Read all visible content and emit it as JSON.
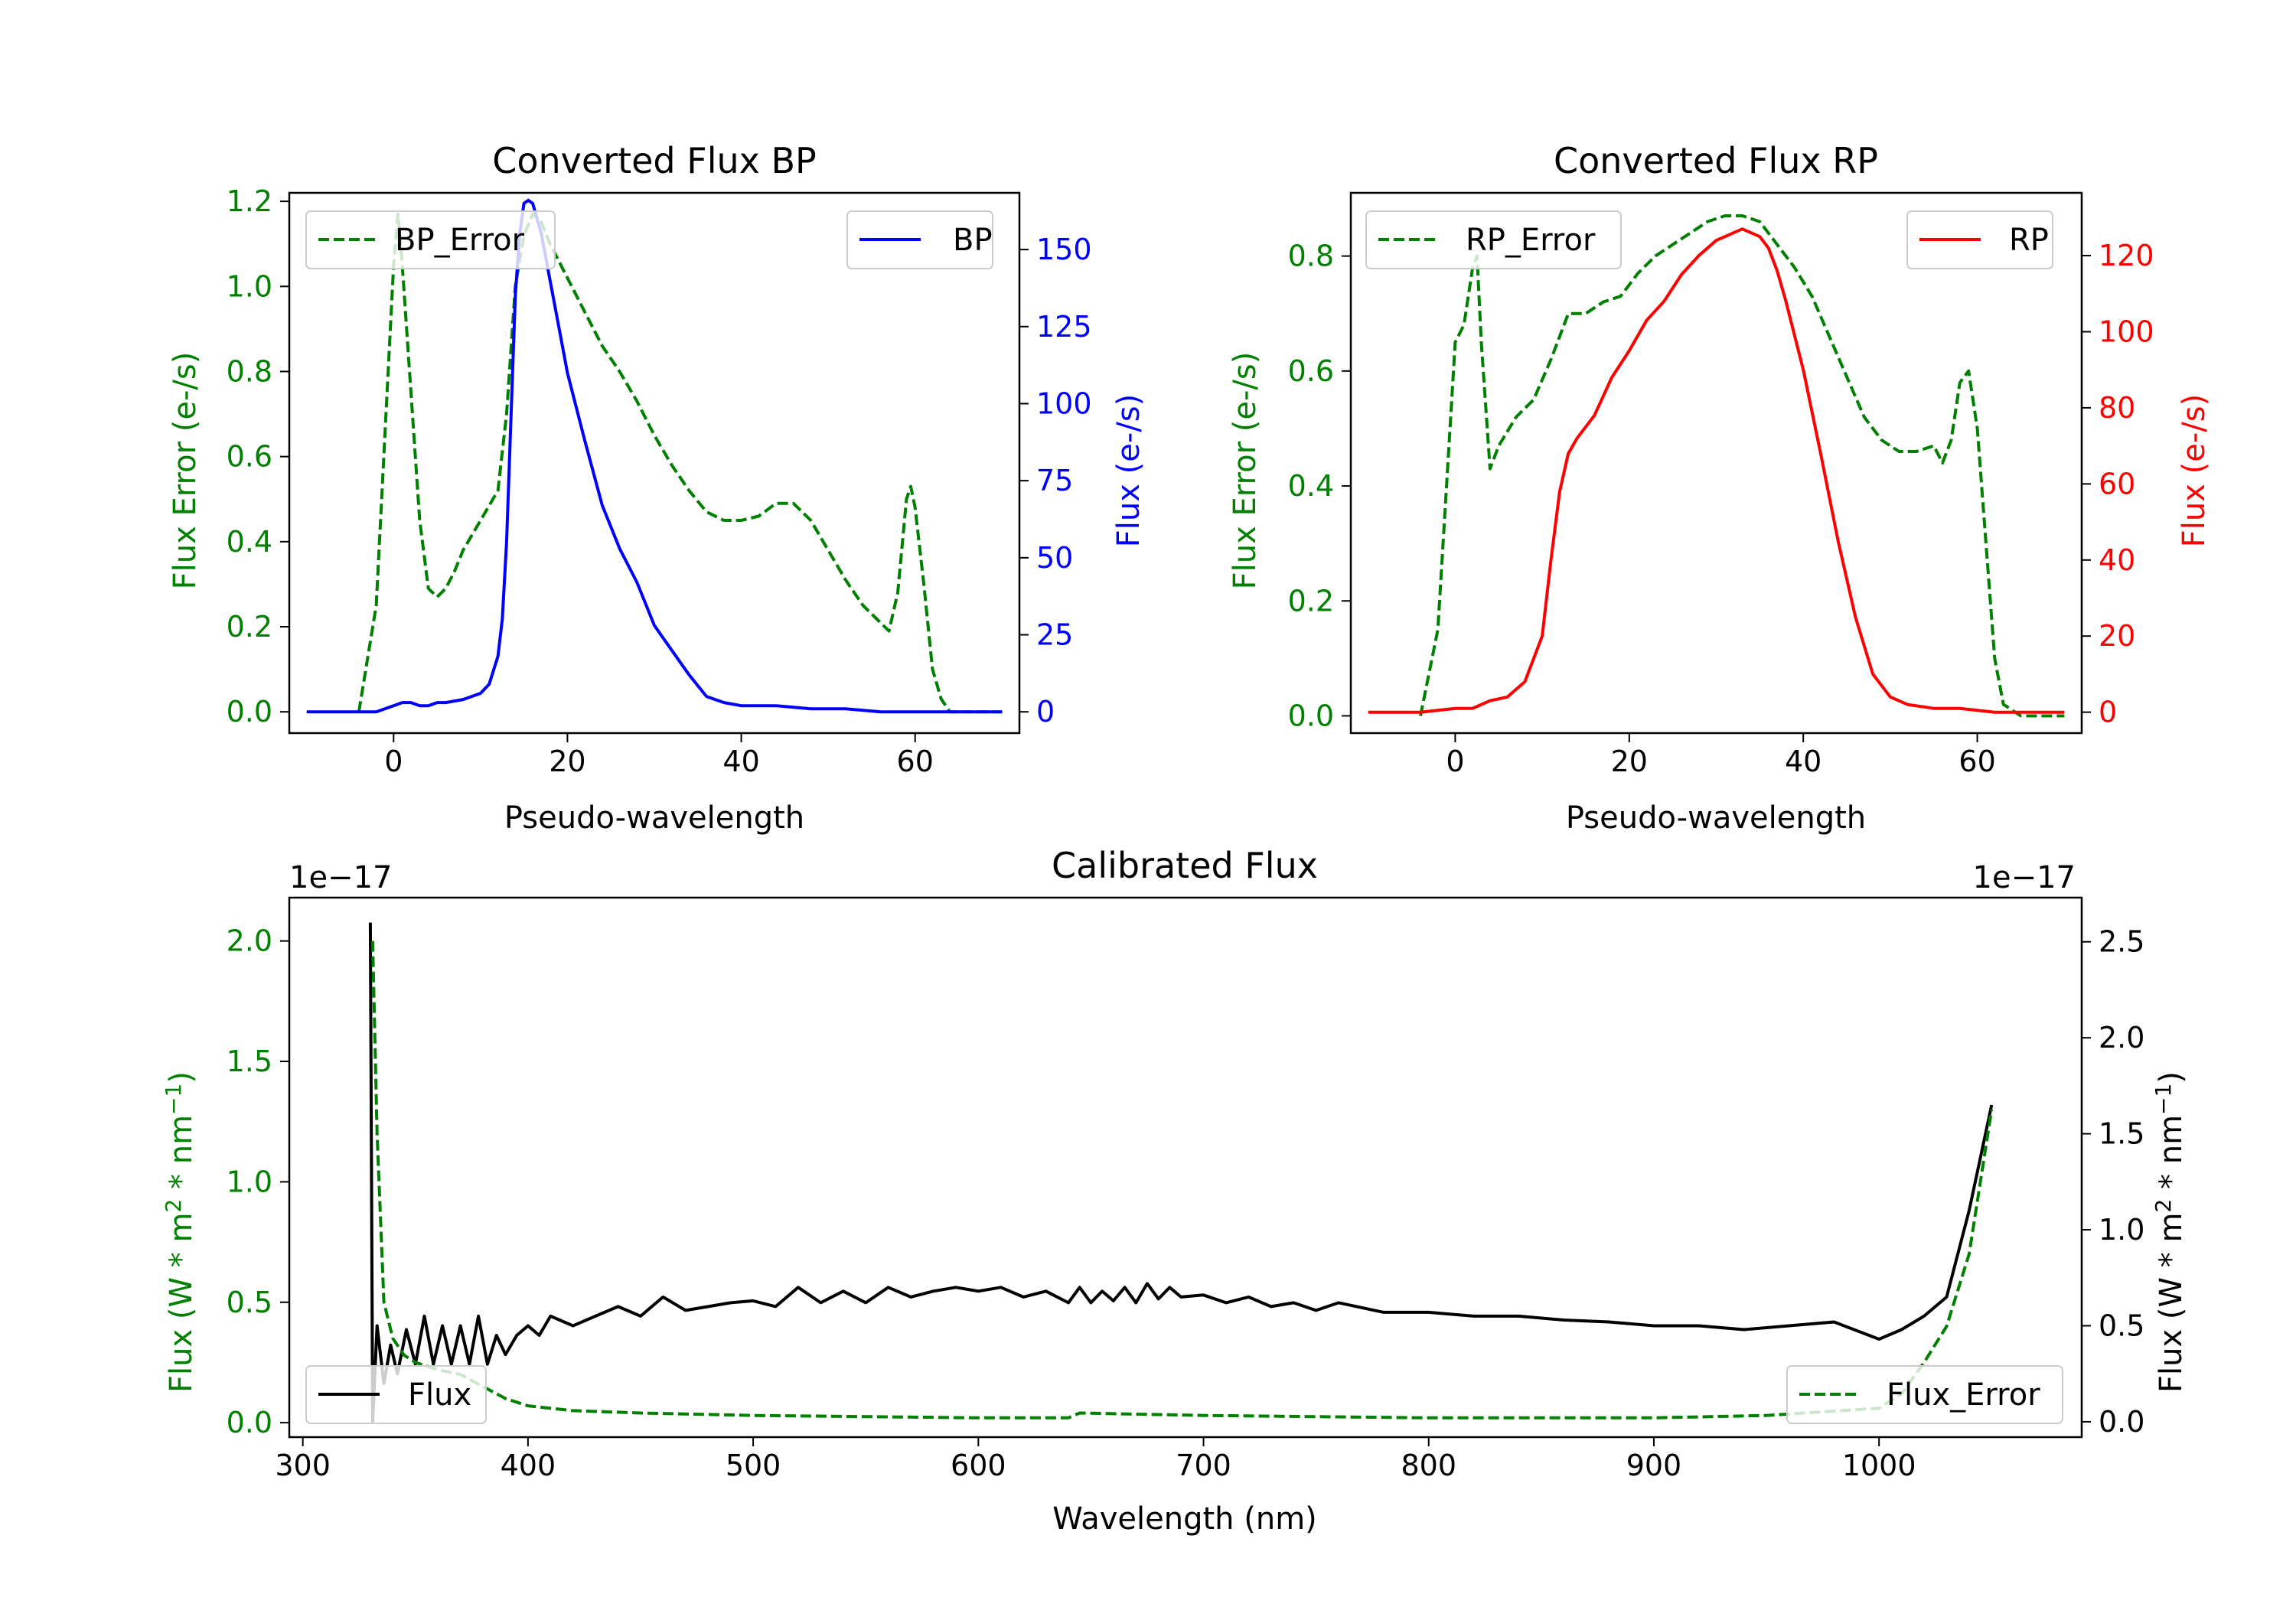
{
  "chart_data": [
    {
      "type": "line",
      "title": "Converted Flux BP",
      "xlabel": "Pseudo-wavelength",
      "ylabel_left": "Flux Error (e-/s)",
      "ylabel_right": "Flux (e-/s)",
      "xlim": [
        -12,
        72
      ],
      "ylim_left": [
        -0.05,
        1.22
      ],
      "ylim_right": [
        -6.9,
        168.4
      ],
      "xticks": [
        0,
        20,
        40,
        60
      ],
      "yticks_left": [
        0.0,
        0.2,
        0.4,
        0.6,
        0.8,
        1.0,
        1.2
      ],
      "yticks_left_labels": [
        "0.0",
        "0.2",
        "0.4",
        "0.6",
        "0.8",
        "1.0",
        "1.2"
      ],
      "yticks_right": [
        0,
        25,
        50,
        75,
        100,
        125,
        150
      ],
      "colors": {
        "left_axis": "#008000",
        "right_axis": "#0000ff"
      },
      "series": [
        {
          "name": "BP_Error",
          "axis": "left",
          "color": "#008000",
          "dash": true,
          "x": [
            -4,
            -2,
            -1,
            0,
            0.5,
            1,
            2,
            3,
            4,
            5,
            6,
            7,
            8,
            10,
            12,
            13,
            14,
            15,
            16,
            17,
            18,
            20,
            22,
            24,
            26,
            28,
            30,
            32,
            34,
            36,
            38,
            40,
            42,
            44,
            46,
            48,
            50,
            52,
            54,
            56,
            57,
            58,
            59,
            59.5,
            60,
            61,
            62,
            63,
            64,
            66,
            68,
            70
          ],
          "y": [
            0.0,
            0.25,
            0.65,
            1.05,
            1.17,
            1.05,
            0.75,
            0.45,
            0.29,
            0.27,
            0.29,
            0.33,
            0.38,
            0.45,
            0.52,
            0.7,
            1.0,
            1.12,
            1.17,
            1.15,
            1.1,
            1.02,
            0.94,
            0.86,
            0.8,
            0.73,
            0.65,
            0.58,
            0.52,
            0.47,
            0.45,
            0.45,
            0.46,
            0.49,
            0.49,
            0.45,
            0.38,
            0.31,
            0.25,
            0.21,
            0.19,
            0.28,
            0.5,
            0.53,
            0.48,
            0.3,
            0.1,
            0.03,
            0.0,
            0.0,
            0.0,
            0.0
          ]
        },
        {
          "name": "BP",
          "axis": "right",
          "color": "#0000ff",
          "dash": false,
          "x": [
            -10,
            -6,
            -4,
            -2,
            0,
            1,
            2,
            3,
            4,
            5,
            6,
            8,
            10,
            11,
            12,
            12.5,
            13,
            13.5,
            14,
            14.5,
            15,
            15.5,
            16,
            17,
            18,
            19,
            20,
            22,
            24,
            26,
            28,
            30,
            32,
            34,
            36,
            38,
            40,
            42,
            44,
            48,
            52,
            56,
            60,
            64,
            68,
            70
          ],
          "y": [
            0,
            0,
            0,
            0,
            2,
            3,
            3,
            2,
            2,
            3,
            3,
            4,
            6,
            9,
            18,
            30,
            55,
            95,
            135,
            155,
            165,
            166,
            165,
            155,
            140,
            125,
            110,
            88,
            67,
            53,
            42,
            28,
            20,
            12,
            5,
            3,
            2,
            2,
            2,
            1,
            1,
            0,
            0,
            0,
            0,
            0
          ]
        }
      ],
      "legend": [
        {
          "label": "BP_Error",
          "position": "upper left"
        },
        {
          "label": "BP",
          "position": "upper right"
        }
      ]
    },
    {
      "type": "line",
      "title": "Converted Flux RP",
      "xlabel": "Pseudo-wavelength",
      "ylabel_left": "Flux Error (e-/s)",
      "ylabel_right": "Flux (e-/s)",
      "xlim": [
        -12,
        72
      ],
      "ylim_left": [
        -0.03,
        0.91
      ],
      "ylim_right": [
        -5.5,
        136.5
      ],
      "xticks": [
        0,
        20,
        40,
        60
      ],
      "yticks_left": [
        0.0,
        0.2,
        0.4,
        0.6,
        0.8
      ],
      "yticks_left_labels": [
        "0.0",
        "0.2",
        "0.4",
        "0.6",
        "0.8"
      ],
      "yticks_right": [
        0,
        20,
        40,
        60,
        80,
        100,
        120
      ],
      "colors": {
        "left_axis": "#008000",
        "right_axis": "#ff0000"
      },
      "series": [
        {
          "name": "RP_Error",
          "axis": "left",
          "color": "#008000",
          "dash": true,
          "x": [
            -4,
            -2,
            -1,
            0,
            1,
            2,
            2.5,
            3,
            4,
            5,
            7,
            9,
            11,
            13,
            15,
            17,
            19,
            21,
            23,
            25,
            27,
            29,
            31,
            33,
            35,
            37,
            39,
            41,
            43,
            45,
            47,
            49,
            51,
            53,
            55,
            56,
            57,
            58,
            59,
            60,
            61,
            62,
            63,
            65,
            70
          ],
          "y": [
            0.0,
            0.15,
            0.4,
            0.65,
            0.68,
            0.78,
            0.8,
            0.65,
            0.43,
            0.47,
            0.52,
            0.55,
            0.62,
            0.7,
            0.7,
            0.72,
            0.73,
            0.77,
            0.8,
            0.82,
            0.84,
            0.86,
            0.87,
            0.87,
            0.86,
            0.82,
            0.78,
            0.73,
            0.66,
            0.59,
            0.52,
            0.48,
            0.46,
            0.46,
            0.47,
            0.44,
            0.48,
            0.58,
            0.6,
            0.5,
            0.3,
            0.1,
            0.02,
            0.0,
            0.0
          ]
        },
        {
          "name": "RP",
          "axis": "right",
          "color": "#ff0000",
          "dash": false,
          "x": [
            -10,
            -4,
            0,
            2,
            4,
            6,
            8,
            10,
            11,
            12,
            13,
            14,
            16,
            18,
            20,
            22,
            24,
            26,
            28,
            30,
            31,
            32,
            33,
            34,
            35,
            36,
            37,
            38,
            40,
            42,
            44,
            46,
            48,
            50,
            52,
            55,
            58,
            62,
            66,
            70
          ],
          "y": [
            0,
            0,
            1,
            1,
            3,
            4,
            8,
            20,
            40,
            58,
            68,
            72,
            78,
            88,
            95,
            103,
            108,
            115,
            120,
            124,
            125,
            126,
            127,
            126,
            125,
            122,
            116,
            108,
            90,
            68,
            45,
            25,
            10,
            4,
            2,
            1,
            1,
            0,
            0,
            0
          ]
        }
      ],
      "legend": [
        {
          "label": "RP_Error",
          "position": "upper left"
        },
        {
          "label": "RP",
          "position": "upper right"
        }
      ]
    },
    {
      "type": "line",
      "title": "Calibrated Flux",
      "xlabel": "Wavelength (nm)",
      "ylabel_left": "Flux (W * m$^2$ * nm$^{-1}$)",
      "ylabel_left_display": {
        "base": "Flux (W * m",
        "sup1": "2",
        "mid": " * nm",
        "sup2": "−1",
        "end": ")"
      },
      "ylabel_right_display": {
        "base": "Flux (W * m",
        "sup1": "2",
        "mid": " * nm",
        "sup2": "−1",
        "end": ")"
      },
      "offset_left": "1e−17",
      "offset_right": "1e−17",
      "xlim": [
        294,
        1090
      ],
      "ylim_left": [
        -0.06,
        2.18
      ],
      "ylim_right": [
        -0.08,
        2.73
      ],
      "xticks": [
        300,
        400,
        500,
        600,
        700,
        800,
        900,
        1000
      ],
      "yticks_left": [
        0.0,
        0.5,
        1.0,
        1.5,
        2.0
      ],
      "yticks_left_labels": [
        "0.0",
        "0.5",
        "1.0",
        "1.5",
        "2.0"
      ],
      "yticks_right": [
        0.0,
        0.5,
        1.0,
        1.5,
        2.0,
        2.5
      ],
      "yticks_right_labels": [
        "0.0",
        "0.5",
        "1.0",
        "1.5",
        "2.0",
        "2.5"
      ],
      "colors": {
        "left_axis": "#008000",
        "right_axis": "#000000"
      },
      "series": [
        {
          "name": "Flux",
          "axis": "right",
          "color": "#000000",
          "dash": false,
          "x": [
            330,
            331,
            333,
            336,
            339,
            342,
            346,
            350,
            354,
            358,
            362,
            366,
            370,
            374,
            378,
            382,
            386,
            390,
            395,
            400,
            405,
            410,
            420,
            430,
            440,
            450,
            460,
            470,
            480,
            490,
            500,
            510,
            520,
            530,
            540,
            550,
            560,
            570,
            580,
            590,
            600,
            610,
            620,
            630,
            640,
            645,
            650,
            655,
            660,
            665,
            670,
            675,
            680,
            685,
            690,
            700,
            710,
            720,
            730,
            740,
            750,
            760,
            780,
            800,
            820,
            840,
            860,
            880,
            900,
            920,
            940,
            960,
            980,
            1000,
            1010,
            1020,
            1030,
            1040,
            1050
          ],
          "y": [
            2.6,
            0.0,
            0.5,
            0.2,
            0.4,
            0.25,
            0.48,
            0.3,
            0.55,
            0.3,
            0.5,
            0.3,
            0.5,
            0.3,
            0.55,
            0.3,
            0.45,
            0.35,
            0.45,
            0.5,
            0.45,
            0.55,
            0.5,
            0.55,
            0.6,
            0.55,
            0.65,
            0.58,
            0.6,
            0.62,
            0.63,
            0.6,
            0.7,
            0.62,
            0.68,
            0.62,
            0.7,
            0.65,
            0.68,
            0.7,
            0.68,
            0.7,
            0.65,
            0.68,
            0.62,
            0.7,
            0.62,
            0.68,
            0.63,
            0.7,
            0.62,
            0.72,
            0.64,
            0.7,
            0.65,
            0.66,
            0.62,
            0.65,
            0.6,
            0.62,
            0.58,
            0.62,
            0.57,
            0.57,
            0.55,
            0.55,
            0.53,
            0.52,
            0.5,
            0.5,
            0.48,
            0.5,
            0.52,
            0.43,
            0.48,
            0.55,
            0.65,
            1.1,
            1.65
          ]
        },
        {
          "name": "Flux_Error",
          "axis": "left",
          "color": "#008000",
          "dash": true,
          "x": [
            331,
            333,
            336,
            340,
            345,
            350,
            360,
            370,
            380,
            390,
            400,
            420,
            450,
            500,
            550,
            600,
            640,
            645,
            700,
            800,
            900,
            950,
            1000,
            1010,
            1020,
            1030,
            1040,
            1045,
            1050
          ],
          "y": [
            2.0,
            1.2,
            0.5,
            0.35,
            0.28,
            0.25,
            0.22,
            0.2,
            0.15,
            0.1,
            0.07,
            0.05,
            0.04,
            0.03,
            0.025,
            0.02,
            0.02,
            0.04,
            0.03,
            0.02,
            0.02,
            0.03,
            0.06,
            0.12,
            0.25,
            0.4,
            0.7,
            1.0,
            1.3
          ]
        }
      ],
      "legend": [
        {
          "label": "Flux",
          "position": "lower left"
        },
        {
          "label": "Flux_Error",
          "position": "lower right"
        }
      ]
    }
  ]
}
